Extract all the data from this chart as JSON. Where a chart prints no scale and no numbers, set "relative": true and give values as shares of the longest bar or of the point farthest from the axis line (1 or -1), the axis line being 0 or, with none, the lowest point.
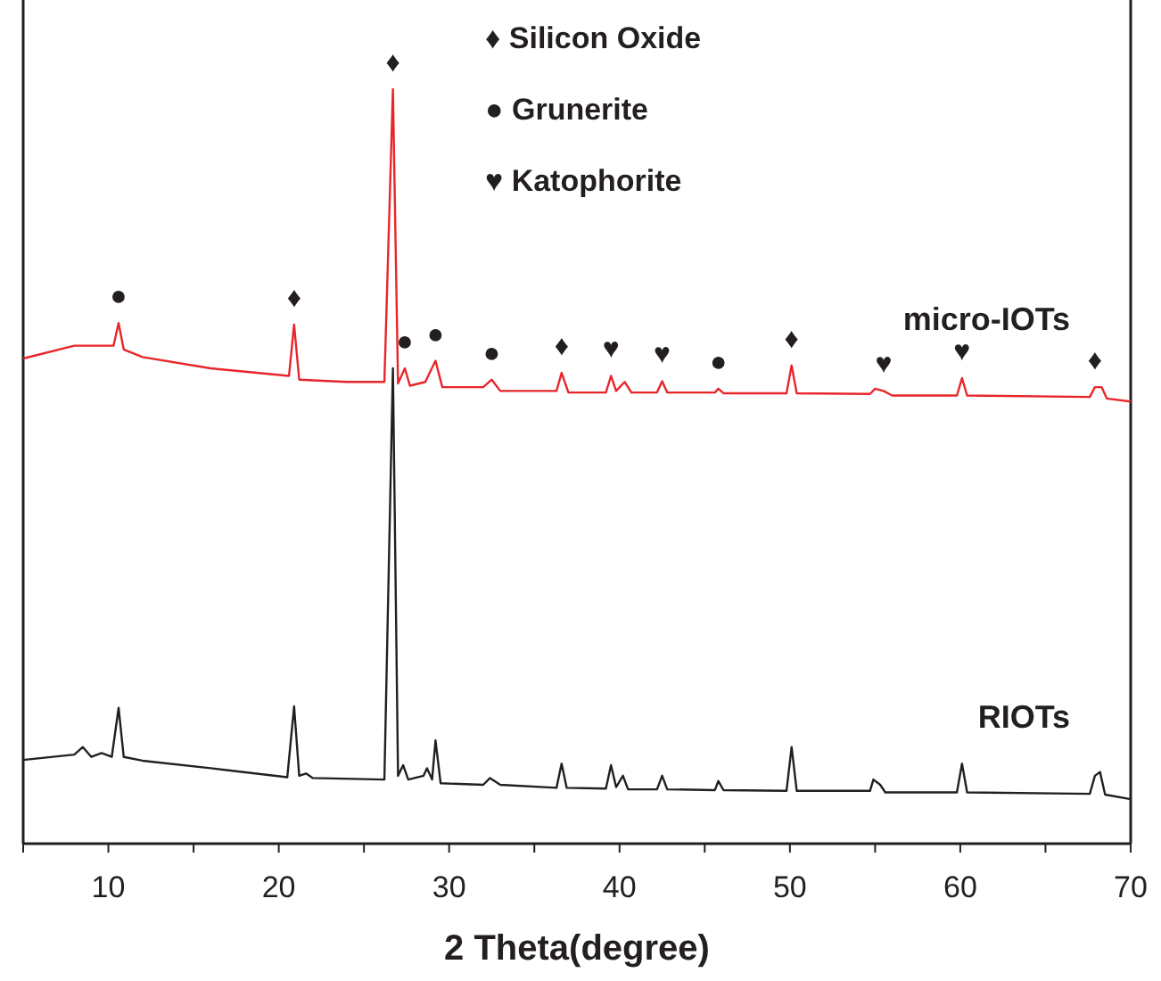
{
  "chart_data": {
    "type": "line",
    "relative": true,
    "xlabel": "2 Theta(degree)",
    "xlim": [
      5,
      70
    ],
    "xticks": [
      {
        "value": 5,
        "label": null
      },
      10,
      {
        "value": 15,
        "label": null
      },
      20,
      {
        "value": 25,
        "label": null
      },
      30,
      {
        "value": 35,
        "label": null
      },
      40,
      {
        "value": 45,
        "label": null
      },
      50,
      {
        "value": 55,
        "label": null
      },
      60,
      {
        "value": 65,
        "label": null
      },
      70
    ],
    "grid": false,
    "tick_labels": "x",
    "series": [
      {
        "name": "micro-IOTs",
        "color": "#e8262a",
        "x": [
          5,
          8,
          9.5,
          10.3,
          10.6,
          10.9,
          12,
          16,
          20.6,
          20.9,
          21.2,
          24,
          26.2,
          26.7,
          27.0,
          27.4,
          27.7,
          28.6,
          29.2,
          29.6,
          32,
          32.5,
          33,
          36.3,
          36.6,
          37,
          39.2,
          39.5,
          39.8,
          40.3,
          40.7,
          42.2,
          42.5,
          42.8,
          45.6,
          45.8,
          46.1,
          49.8,
          50.1,
          50.4,
          54.7,
          55,
          55.5,
          56,
          59.8,
          60.1,
          60.4,
          67.6,
          67.9,
          68.3,
          68.6,
          70
        ],
        "values": [
          0.643,
          0.66,
          0.66,
          0.66,
          0.69,
          0.655,
          0.645,
          0.63,
          0.62,
          0.688,
          0.615,
          0.612,
          0.612,
          1.0,
          0.61,
          0.63,
          0.607,
          0.612,
          0.64,
          0.605,
          0.605,
          0.615,
          0.6,
          0.6,
          0.624,
          0.598,
          0.598,
          0.62,
          0.6,
          0.612,
          0.598,
          0.598,
          0.613,
          0.598,
          0.598,
          0.603,
          0.597,
          0.597,
          0.634,
          0.597,
          0.596,
          0.603,
          0.6,
          0.594,
          0.594,
          0.617,
          0.594,
          0.592,
          0.605,
          0.605,
          0.59,
          0.586
        ]
      },
      {
        "name": "RIOTs",
        "color": "#231f20",
        "x": [
          5,
          8,
          8.5,
          9,
          9.6,
          10.2,
          10.6,
          10.9,
          12,
          16,
          20.5,
          20.9,
          21.2,
          21.6,
          22,
          26.2,
          26.7,
          27.0,
          27.3,
          27.6,
          28.5,
          28.7,
          29.0,
          29.2,
          29.5,
          32,
          32.4,
          33,
          36.3,
          36.6,
          36.9,
          39.2,
          39.5,
          39.8,
          40.2,
          40.5,
          42.2,
          42.5,
          42.8,
          45.6,
          45.8,
          46.1,
          49.8,
          50.1,
          50.4,
          54.7,
          54.9,
          55.3,
          55.6,
          59.8,
          60.1,
          60.4,
          67.6,
          67.9,
          68.2,
          68.5,
          70
        ],
        "values": [
          0.111,
          0.118,
          0.128,
          0.115,
          0.12,
          0.115,
          0.18,
          0.115,
          0.11,
          0.1,
          0.088,
          0.182,
          0.09,
          0.093,
          0.087,
          0.085,
          0.63,
          0.09,
          0.104,
          0.085,
          0.09,
          0.1,
          0.085,
          0.137,
          0.08,
          0.078,
          0.087,
          0.078,
          0.074,
          0.106,
          0.074,
          0.073,
          0.104,
          0.075,
          0.09,
          0.072,
          0.072,
          0.09,
          0.072,
          0.071,
          0.083,
          0.071,
          0.07,
          0.128,
          0.07,
          0.07,
          0.085,
          0.078,
          0.068,
          0.068,
          0.106,
          0.068,
          0.066,
          0.09,
          0.095,
          0.065,
          0.059
        ]
      }
    ],
    "annotations": [
      "♦  Silicon Oxide",
      "●  Grunerite",
      "♥  Katophorite",
      {
        "text": "●",
        "x": 10.6,
        "y": 0.69
      },
      {
        "text": "♦",
        "x": 20.9,
        "y": 0.688
      },
      {
        "text": "♦",
        "x": 26.7,
        "y": 1.0
      },
      {
        "text": "●",
        "x": 27.4,
        "y": 0.63
      },
      {
        "text": "●",
        "x": 29.2,
        "y": 0.64
      },
      {
        "text": "●",
        "x": 32.5,
        "y": 0.615
      },
      {
        "text": "♦",
        "x": 36.6,
        "y": 0.624
      },
      {
        "text": "♥",
        "x": 39.5,
        "y": 0.62
      },
      {
        "text": "♥",
        "x": 42.5,
        "y": 0.613
      },
      {
        "text": "●",
        "x": 45.8,
        "y": 0.603
      },
      {
        "text": "♦",
        "x": 50.1,
        "y": 0.634
      },
      {
        "text": "♥",
        "x": 55.5,
        "y": 0.6
      },
      {
        "text": "♥",
        "x": 60.1,
        "y": 0.617
      },
      {
        "text": "♦",
        "x": 67.9,
        "y": 0.605
      }
    ]
  }
}
